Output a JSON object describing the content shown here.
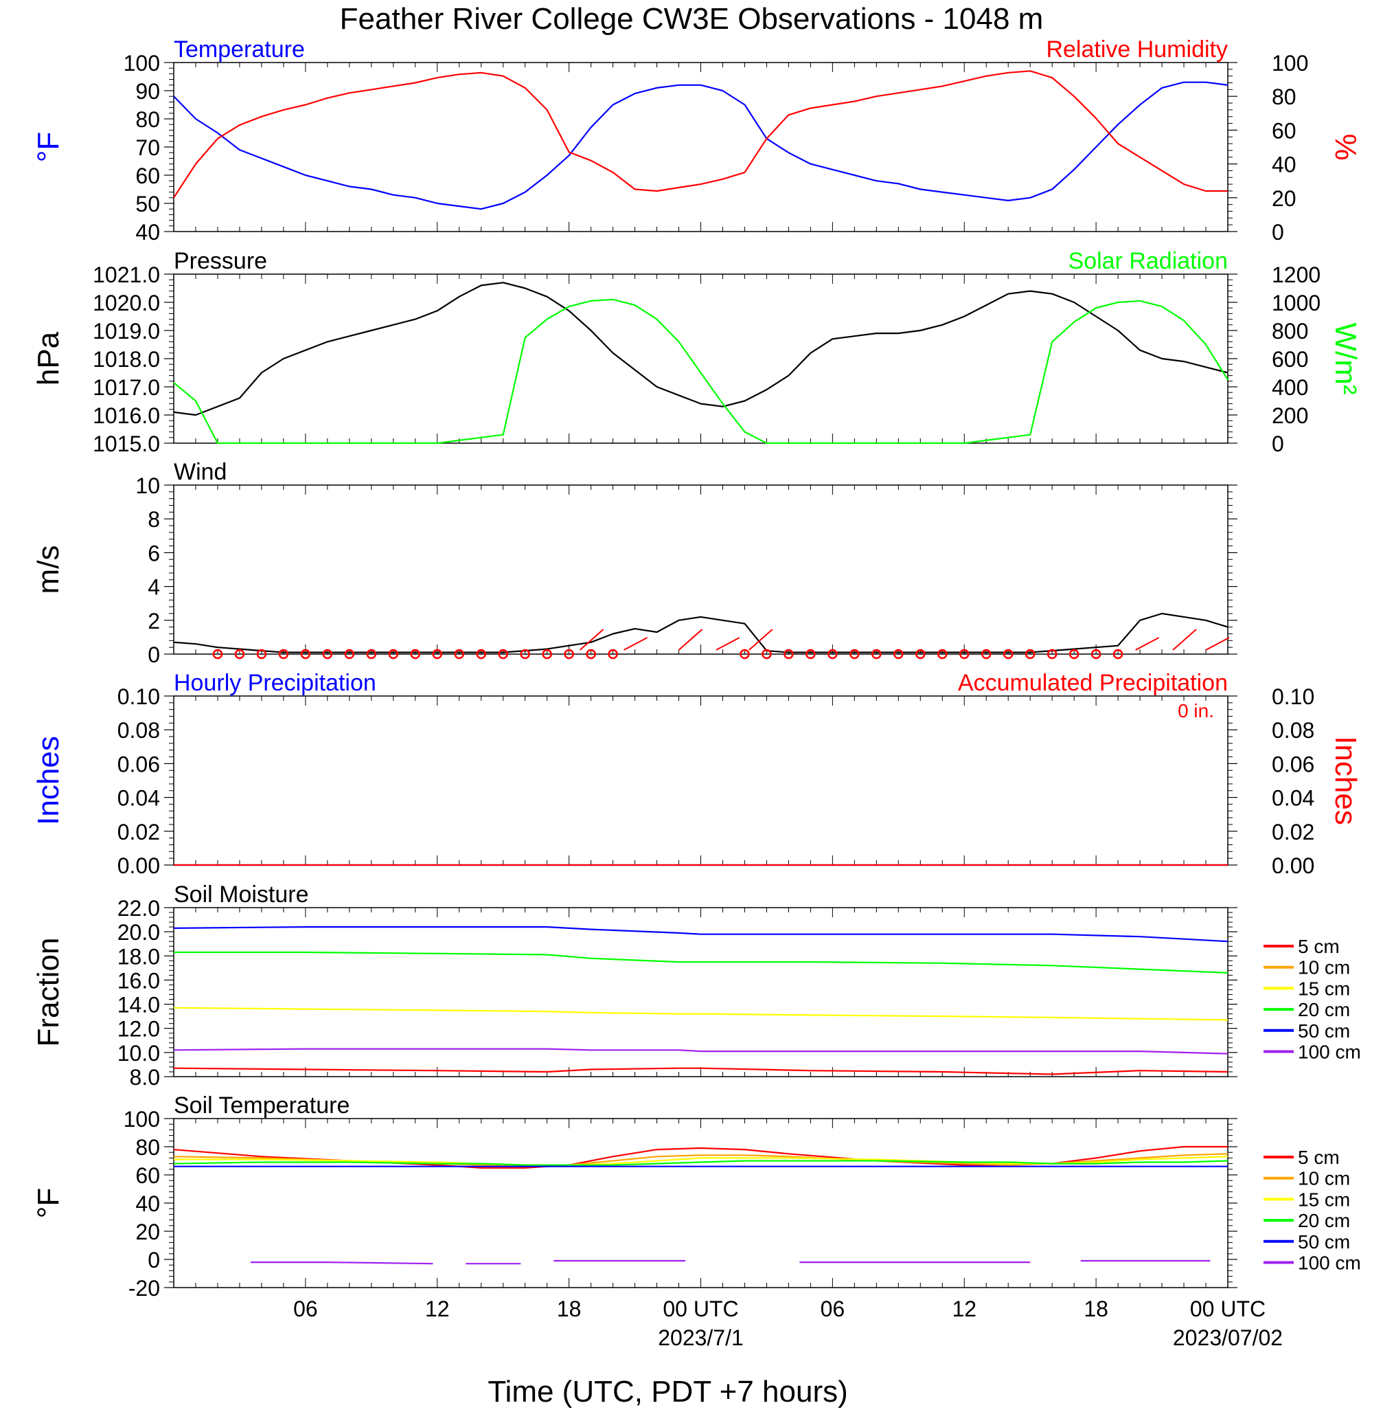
{
  "title": "Feather River College CW3E Observations - 1048 m",
  "xaxis": {
    "label": "Time (UTC, PDT +7 hours)",
    "tick_labels": [
      "06",
      "12",
      "18",
      "00 UTC",
      "06",
      "12",
      "18",
      "00 UTC"
    ],
    "date_labels": [
      "2023/7/1",
      "2023/07/02"
    ]
  },
  "colors": {
    "blue": "#0000ff",
    "red": "#ff0000",
    "green": "#00ff00",
    "black": "#000000",
    "orange": "#ffa500",
    "yellow": "#ffff00",
    "purple": "#a020f0"
  },
  "chart_data": [
    {
      "type": "line",
      "title_left": "Temperature",
      "title_right": "Relative Humidity",
      "ylabel_left": "°F",
      "ylabel_right": "%",
      "ylim_left": [
        40,
        100
      ],
      "ylim_right": [
        0,
        100
      ],
      "yticks_left": [
        "40",
        "50",
        "60",
        "70",
        "80",
        "90",
        "100"
      ],
      "yticks_right": [
        "0",
        "20",
        "40",
        "60",
        "80",
        "100"
      ],
      "x_hours": [
        0,
        1,
        2,
        3,
        4,
        5,
        6,
        7,
        8,
        9,
        10,
        11,
        12,
        13,
        14,
        15,
        16,
        17,
        18,
        19,
        20,
        21,
        22,
        23,
        24,
        25,
        26,
        27,
        28,
        29,
        30,
        31,
        32,
        33,
        34,
        35,
        36,
        37,
        38,
        39,
        40,
        41,
        42,
        43,
        44,
        45,
        46,
        47,
        48
      ],
      "series": [
        {
          "name": "Temperature",
          "axis": "left",
          "color": "blue",
          "values": [
            88,
            80,
            75,
            69,
            66,
            63,
            60,
            58,
            56,
            55,
            53,
            52,
            50,
            49,
            48,
            50,
            54,
            60,
            67,
            77,
            85,
            89,
            91,
            92,
            92,
            90,
            85,
            73,
            68,
            64,
            62,
            60,
            58,
            57,
            55,
            54,
            53,
            52,
            51,
            52,
            55,
            62,
            70,
            78,
            85,
            91,
            93,
            93,
            92
          ]
        },
        {
          "name": "Relative Humidity",
          "axis": "right",
          "color": "red",
          "values": [
            20,
            40,
            55,
            63,
            68,
            72,
            75,
            79,
            82,
            84,
            86,
            88,
            91,
            93,
            94,
            92,
            85,
            72,
            47,
            42,
            35,
            25,
            24,
            26,
            28,
            31,
            35,
            55,
            69,
            73,
            75,
            77,
            80,
            82,
            84,
            86,
            89,
            92,
            94,
            95,
            91,
            80,
            67,
            52,
            44,
            36,
            28,
            24,
            24
          ]
        }
      ]
    },
    {
      "type": "line",
      "title_left": "Pressure",
      "title_right": "Solar Radiation",
      "ylabel_left": "hPa",
      "ylabel_right": "W/m²",
      "ylim_left": [
        1015,
        1021
      ],
      "ylim_right": [
        0,
        1200
      ],
      "yticks_left": [
        "1015.0",
        "1016.0",
        "1017.0",
        "1018.0",
        "1019.0",
        "1020.0",
        "1021.0"
      ],
      "yticks_right": [
        "0",
        "200",
        "400",
        "600",
        "800",
        "1000",
        "1200"
      ],
      "x_hours": [
        0,
        1,
        2,
        3,
        4,
        5,
        6,
        7,
        8,
        9,
        10,
        11,
        12,
        13,
        14,
        15,
        16,
        17,
        18,
        19,
        20,
        21,
        22,
        23,
        24,
        25,
        26,
        27,
        28,
        29,
        30,
        31,
        32,
        33,
        34,
        35,
        36,
        37,
        38,
        39,
        40,
        41,
        42,
        43,
        44,
        45,
        46,
        47,
        48
      ],
      "series": [
        {
          "name": "Pressure",
          "axis": "left",
          "color": "black",
          "values": [
            1016.1,
            1016.0,
            1016.3,
            1016.6,
            1017.5,
            1018.0,
            1018.3,
            1018.6,
            1018.8,
            1019.0,
            1019.2,
            1019.4,
            1019.7,
            1020.2,
            1020.6,
            1020.7,
            1020.5,
            1020.2,
            1019.7,
            1019.0,
            1018.2,
            1017.6,
            1017.0,
            1016.7,
            1016.4,
            1016.3,
            1016.5,
            1016.9,
            1017.4,
            1018.2,
            1018.7,
            1018.8,
            1018.9,
            1018.9,
            1019.0,
            1019.2,
            1019.5,
            1019.9,
            1020.3,
            1020.4,
            1020.3,
            1020.0,
            1019.5,
            1019.0,
            1018.3,
            1018.0,
            1017.9,
            1017.7,
            1017.5
          ]
        },
        {
          "name": "Solar Radiation",
          "axis": "right",
          "color": "green",
          "values": [
            430,
            300,
            0,
            0,
            0,
            0,
            0,
            0,
            0,
            0,
            0,
            0,
            0,
            20,
            40,
            60,
            750,
            880,
            970,
            1010,
            1020,
            980,
            880,
            720,
            500,
            280,
            80,
            0,
            0,
            0,
            0,
            0,
            0,
            0,
            0,
            0,
            0,
            20,
            40,
            60,
            720,
            860,
            960,
            1000,
            1010,
            970,
            870,
            700,
            450
          ]
        }
      ]
    },
    {
      "type": "line",
      "title_left": "Wind",
      "ylabel_left": "m/s",
      "ylim_left": [
        0,
        10
      ],
      "yticks_left": [
        "0",
        "2",
        "4",
        "6",
        "8",
        "10"
      ],
      "x_hours": [
        0,
        1,
        2,
        3,
        4,
        5,
        6,
        7,
        8,
        9,
        10,
        11,
        12,
        13,
        14,
        15,
        16,
        17,
        18,
        19,
        20,
        21,
        22,
        23,
        24,
        25,
        26,
        27,
        28,
        29,
        30,
        31,
        32,
        33,
        34,
        35,
        36,
        37,
        38,
        39,
        40,
        41,
        42,
        43,
        44,
        45,
        46,
        47,
        48
      ],
      "series": [
        {
          "name": "Wind",
          "axis": "left",
          "color": "black",
          "values": [
            0.7,
            0.6,
            0.4,
            0.3,
            0.2,
            0.1,
            0.1,
            0.1,
            0.1,
            0.1,
            0.1,
            0.1,
            0.1,
            0.1,
            0.1,
            0.1,
            0.2,
            0.3,
            0.5,
            0.7,
            1.2,
            1.5,
            1.3,
            2.0,
            2.2,
            2.0,
            1.8,
            0.2,
            0.1,
            0.1,
            0.1,
            0.1,
            0.1,
            0.1,
            0.1,
            0.1,
            0.1,
            0.1,
            0.1,
            0.1,
            0.2,
            0.3,
            0.4,
            0.5,
            2.0,
            2.4,
            2.2,
            2.0,
            1.6
          ]
        }
      ],
      "barb_hours": [
        2,
        3,
        4,
        5,
        6,
        7,
        8,
        9,
        10,
        11,
        12,
        13,
        14,
        15,
        16,
        17,
        18,
        19,
        20,
        22,
        23,
        24,
        25,
        26,
        27,
        28,
        29,
        30,
        31,
        32,
        33,
        34,
        35,
        36,
        37,
        38,
        39,
        40,
        41,
        42,
        43,
        44,
        45,
        46
      ],
      "barb_circle_hours": [
        2,
        3,
        4,
        5,
        6,
        7,
        8,
        9,
        10,
        11,
        12,
        13,
        14,
        15,
        16,
        17,
        18,
        19,
        20,
        26,
        27,
        28,
        29,
        30,
        31,
        32,
        33,
        34,
        35,
        36,
        37,
        38,
        39,
        40,
        41,
        42,
        43
      ]
    },
    {
      "type": "line",
      "title_left": "Hourly Precipitation",
      "title_right": "Accumulated Precipitation",
      "annotation": "0 in.",
      "ylabel_left": "Inches",
      "ylabel_right": "Inches",
      "ylim_left": [
        0,
        0.1
      ],
      "ylim_right": [
        0,
        0.1
      ],
      "yticks_left": [
        "0.00",
        "0.02",
        "0.04",
        "0.06",
        "0.08",
        "0.10"
      ],
      "yticks_right": [
        "0.00",
        "0.02",
        "0.04",
        "0.06",
        "0.08",
        "0.10"
      ],
      "x_hours": [
        0,
        48
      ],
      "series": [
        {
          "name": "Hourly Precipitation",
          "axis": "left",
          "color": "blue",
          "values": [
            0,
            0
          ]
        },
        {
          "name": "Accumulated Precipitation",
          "axis": "right",
          "color": "red",
          "values": [
            0,
            0
          ]
        }
      ]
    },
    {
      "type": "line",
      "title_left": "Soil Moisture",
      "ylabel_left": "Fraction",
      "ylim_left": [
        8,
        22
      ],
      "yticks_left": [
        "8.0",
        "10.0",
        "12.0",
        "14.0",
        "16.0",
        "18.0",
        "20.0",
        "22.0"
      ],
      "x_hours": [
        0,
        6,
        12,
        17,
        19,
        23,
        24,
        29,
        35,
        40,
        44,
        48
      ],
      "series": [
        {
          "name": "5 cm",
          "color": "red",
          "values": [
            8.7,
            8.6,
            8.5,
            8.4,
            8.6,
            8.7,
            8.7,
            8.5,
            8.4,
            8.2,
            8.5,
            8.4
          ]
        },
        {
          "name": "10 cm",
          "color": "orange",
          "values": []
        },
        {
          "name": "15 cm",
          "color": "yellow",
          "values": [
            13.7,
            13.6,
            13.5,
            13.4,
            13.3,
            13.2,
            13.2,
            13.1,
            13.0,
            12.9,
            12.8,
            12.7
          ]
        },
        {
          "name": "20 cm",
          "color": "green",
          "values": [
            18.3,
            18.3,
            18.2,
            18.1,
            17.8,
            17.5,
            17.5,
            17.5,
            17.4,
            17.2,
            16.9,
            16.6
          ]
        },
        {
          "name": "50 cm",
          "color": "blue",
          "values": [
            20.3,
            20.4,
            20.4,
            20.4,
            20.2,
            19.9,
            19.8,
            19.8,
            19.8,
            19.8,
            19.6,
            19.2
          ]
        },
        {
          "name": "100 cm",
          "color": "purple",
          "values": [
            10.2,
            10.3,
            10.3,
            10.3,
            10.2,
            10.2,
            10.1,
            10.1,
            10.1,
            10.1,
            10.1,
            9.9
          ]
        }
      ]
    },
    {
      "type": "line",
      "title_left": "Soil Temperature",
      "ylabel_left": "°F",
      "ylim_left": [
        -20,
        100
      ],
      "yticks_left": [
        "-20",
        "0",
        "20",
        "40",
        "60",
        "80",
        "100"
      ],
      "x_hours": [
        0,
        4,
        8,
        12,
        14,
        16,
        18,
        20,
        22,
        24,
        26,
        28,
        32,
        36,
        38,
        40,
        42,
        44,
        46,
        48
      ],
      "series": [
        {
          "name": "5 cm",
          "color": "red",
          "values": [
            78,
            73,
            70,
            67,
            65,
            65,
            67,
            73,
            78,
            79,
            78,
            75,
            70,
            67,
            67,
            68,
            72,
            77,
            80,
            80
          ]
        },
        {
          "name": "10 cm",
          "color": "orange",
          "values": [
            73,
            72,
            70,
            68,
            67,
            66,
            67,
            70,
            73,
            74,
            74,
            73,
            70,
            68,
            67,
            68,
            70,
            72,
            74,
            75
          ]
        },
        {
          "name": "15 cm",
          "color": "yellow",
          "values": [
            71,
            71,
            70,
            69,
            68,
            67,
            67,
            68,
            70,
            72,
            72,
            72,
            71,
            69,
            68,
            68,
            69,
            71,
            72,
            73
          ]
        },
        {
          "name": "20 cm",
          "color": "green",
          "values": [
            68,
            69,
            69,
            68,
            68,
            67,
            67,
            67,
            68,
            69,
            70,
            70,
            70,
            69,
            69,
            68,
            68,
            69,
            69,
            70
          ]
        },
        {
          "name": "50 cm",
          "color": "blue",
          "values": [
            66,
            66,
            66,
            66,
            66,
            66,
            66,
            66,
            66,
            66,
            66,
            66,
            66,
            66,
            66,
            66,
            66,
            66,
            66,
            66
          ]
        },
        {
          "name": "100 cm",
          "color": "purple",
          "segments": [
            {
              "x_hours": [
                3.5,
                7,
                11.8
              ],
              "values": [
                -2,
                -2,
                -3
              ]
            },
            {
              "x_hours": [
                13.3,
                15.8
              ],
              "values": [
                -3,
                -3
              ]
            },
            {
              "x_hours": [
                17.3,
                19.5,
                23.3
              ],
              "values": [
                -1,
                -1,
                -1
              ]
            },
            {
              "x_hours": [
                28.5,
                33,
                39
              ],
              "values": [
                -2,
                -2,
                -2
              ]
            },
            {
              "x_hours": [
                41.3,
                43,
                47.2
              ],
              "values": [
                -1,
                -1,
                -1
              ]
            }
          ]
        }
      ]
    }
  ],
  "legend_labels": [
    "5 cm",
    "10 cm",
    "15 cm",
    "20 cm",
    "50 cm",
    "100 cm"
  ],
  "legend_colors": [
    "red",
    "orange",
    "yellow",
    "green",
    "blue",
    "purple"
  ]
}
